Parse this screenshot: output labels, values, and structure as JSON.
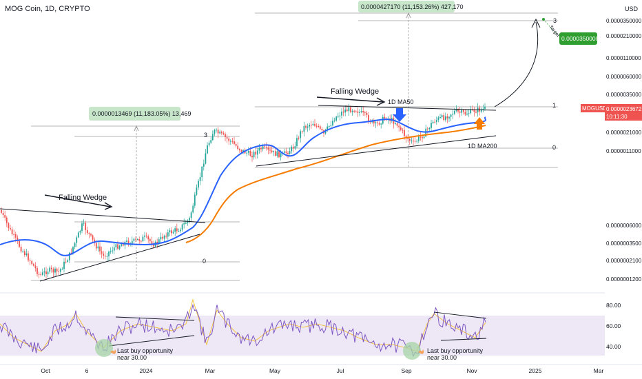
{
  "header": {
    "symbol_title": "MOG Coin, 1D, CRYPTO",
    "currency": "USD"
  },
  "price_scale": {
    "labels": [
      "0.0000350000",
      "0.0000210000",
      "0.0000110000",
      "0.0000060000",
      "0.0000035000",
      "0.0000021000",
      "0.0000011000",
      "0.0000006000",
      "0.0000003500",
      "0.0000002100",
      "0.0000001200"
    ],
    "current_symbol": "MOGUSD",
    "current_price": "0.0000023672",
    "countdown": "10:11:30",
    "target_label": "0.0000350000"
  },
  "rsi_scale": {
    "labels": [
      "80.00",
      "60.00",
      "40.00"
    ]
  },
  "time_axis": {
    "labels": [
      "Oct",
      "6",
      "2024",
      "Mar",
      "May",
      "Jul",
      "Sep",
      "Nov",
      "2025",
      "Mar"
    ]
  },
  "annotations": {
    "wedge_left": "Falling Wedge",
    "wedge_right": "Falling Wedge",
    "measure_left": "0.0000013469 (11,183.05%) 13,469",
    "measure_top": "0.0000427170 (11,153.26%) 427,170",
    "ma50": "1D MA50",
    "ma200": "1D MA200",
    "fib_left_top": "3",
    "fib_left_bottom": "0",
    "fib_right_one": "1",
    "fib_right_zero": "0",
    "fib_target": "3",
    "target_word": "Target",
    "buy1": "Last buy opportunity",
    "buy1b": "near 30.00",
    "buy2": "Last buy opportunity",
    "buy2b": "near 30.00"
  },
  "colors": {
    "ma50": "#2962ff",
    "ma200": "#f57c00",
    "rsi": "#7e57c2",
    "rsi_ma": "#f4c542",
    "rsi_band": "#ede7f6",
    "candle_up": "#26a69a",
    "candle_down": "#ef5350",
    "price_tag": "#ef5350",
    "target_tag": "#2e9e30",
    "measure_box": "#c8e6c9",
    "buy_circle": "#a5d6a7",
    "arrow_blue": "#2962ff",
    "arrow_orange": "#f57c00"
  },
  "chart_data": {
    "type": "candlestick",
    "log_scale": true,
    "y_axis_values": [
      3.5e-05,
      2.1e-05,
      1.1e-05,
      6e-06,
      3.5e-06,
      2.1e-06,
      1.1e-06,
      6e-07,
      3.5e-07,
      2.1e-07,
      1.2e-07
    ],
    "current_price": 2.3672e-06,
    "target_price": 3.5e-05,
    "rsi_levels": [
      80,
      60,
      40
    ],
    "series": [
      {
        "name": "1D MA50"
      },
      {
        "name": "1D MA200"
      }
    ]
  }
}
